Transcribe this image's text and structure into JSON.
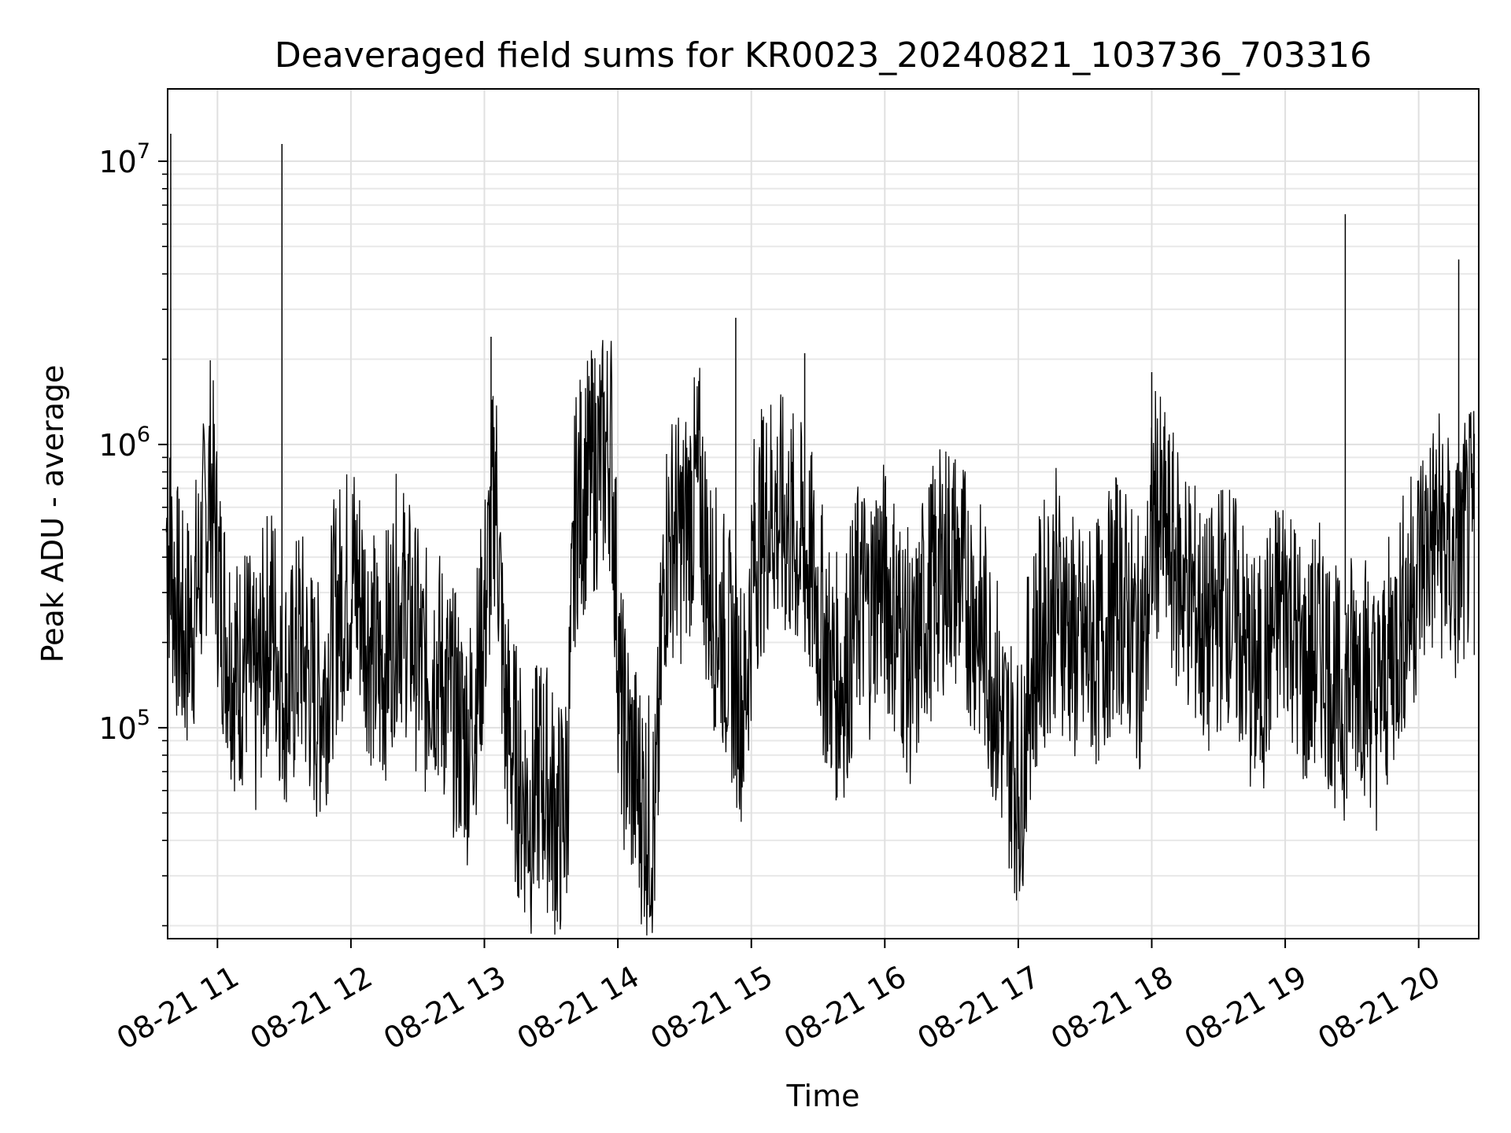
{
  "chart_data": {
    "type": "line",
    "title": "Deaveraged field sums for KR0023_20240821_103736_703316",
    "xlabel": "Time",
    "ylabel": "Peak ADU - average",
    "yscale": "log",
    "ylim": [
      18000,
      18000000
    ],
    "xlim": [
      "2024-08-21 10:37:36",
      "2024-08-21 20:27:00"
    ],
    "grid": true,
    "x_ticks": [
      {
        "t": "2024-08-21 11:00",
        "label": "08-21 11"
      },
      {
        "t": "2024-08-21 12:00",
        "label": "08-21 12"
      },
      {
        "t": "2024-08-21 13:00",
        "label": "08-21 13"
      },
      {
        "t": "2024-08-21 14:00",
        "label": "08-21 14"
      },
      {
        "t": "2024-08-21 15:00",
        "label": "08-21 15"
      },
      {
        "t": "2024-08-21 16:00",
        "label": "08-21 16"
      },
      {
        "t": "2024-08-21 17:00",
        "label": "08-21 17"
      },
      {
        "t": "2024-08-21 18:00",
        "label": "08-21 18"
      },
      {
        "t": "2024-08-21 19:00",
        "label": "08-21 19"
      },
      {
        "t": "2024-08-21 20:00",
        "label": "08-21 20"
      }
    ],
    "y_ticks": [
      {
        "value": 100000,
        "base": "10",
        "exp": "5"
      },
      {
        "value": 1000000,
        "base": "10",
        "exp": "6"
      },
      {
        "value": 10000000,
        "base": "10",
        "exp": "7"
      }
    ],
    "series": [
      {
        "color": "#000000",
        "x": [
          "2024-08-21 10:37",
          "2024-08-21 10:41",
          "2024-08-21 10:45",
          "2024-08-21 10:49",
          "2024-08-21 10:53",
          "2024-08-21 10:57",
          "2024-08-21 11:01",
          "2024-08-21 11:05",
          "2024-08-21 11:09",
          "2024-08-21 11:13",
          "2024-08-21 11:17",
          "2024-08-21 11:21",
          "2024-08-21 11:25",
          "2024-08-21 11:29",
          "2024-08-21 11:33",
          "2024-08-21 11:37",
          "2024-08-21 11:41",
          "2024-08-21 11:45",
          "2024-08-21 11:49",
          "2024-08-21 11:53",
          "2024-08-21 11:57",
          "2024-08-21 12:01",
          "2024-08-21 12:05",
          "2024-08-21 12:09",
          "2024-08-21 12:13",
          "2024-08-21 12:17",
          "2024-08-21 12:21",
          "2024-08-21 12:25",
          "2024-08-21 12:29",
          "2024-08-21 12:33",
          "2024-08-21 12:37",
          "2024-08-21 12:41",
          "2024-08-21 12:45",
          "2024-08-21 12:49",
          "2024-08-21 12:53",
          "2024-08-21 12:57",
          "2024-08-21 13:01",
          "2024-08-21 13:05",
          "2024-08-21 13:09",
          "2024-08-21 13:13",
          "2024-08-21 13:17",
          "2024-08-21 13:21",
          "2024-08-21 13:25",
          "2024-08-21 13:29",
          "2024-08-21 13:33",
          "2024-08-21 13:37",
          "2024-08-21 13:41",
          "2024-08-21 13:45",
          "2024-08-21 13:49",
          "2024-08-21 13:53",
          "2024-08-21 13:57",
          "2024-08-21 14:01",
          "2024-08-21 14:05",
          "2024-08-21 14:09",
          "2024-08-21 14:13",
          "2024-08-21 14:17",
          "2024-08-21 14:21",
          "2024-08-21 14:25",
          "2024-08-21 14:29",
          "2024-08-21 14:33",
          "2024-08-21 14:37",
          "2024-08-21 14:41",
          "2024-08-21 14:45",
          "2024-08-21 14:49",
          "2024-08-21 14:53",
          "2024-08-21 14:57",
          "2024-08-21 15:01",
          "2024-08-21 15:05",
          "2024-08-21 15:09",
          "2024-08-21 15:13",
          "2024-08-21 15:17",
          "2024-08-21 15:21",
          "2024-08-21 15:25",
          "2024-08-21 15:29",
          "2024-08-21 15:33",
          "2024-08-21 15:37",
          "2024-08-21 15:41",
          "2024-08-21 15:45",
          "2024-08-21 15:49",
          "2024-08-21 15:53",
          "2024-08-21 15:57",
          "2024-08-21 16:01",
          "2024-08-21 16:05",
          "2024-08-21 16:09",
          "2024-08-21 16:13",
          "2024-08-21 16:17",
          "2024-08-21 16:21",
          "2024-08-21 16:25",
          "2024-08-21 16:29",
          "2024-08-21 16:33",
          "2024-08-21 16:37",
          "2024-08-21 16:41",
          "2024-08-21 16:45",
          "2024-08-21 16:49",
          "2024-08-21 16:53",
          "2024-08-21 16:57",
          "2024-08-21 17:01",
          "2024-08-21 17:05",
          "2024-08-21 17:09",
          "2024-08-21 17:13",
          "2024-08-21 17:17",
          "2024-08-21 17:21",
          "2024-08-21 17:25",
          "2024-08-21 17:29",
          "2024-08-21 17:33",
          "2024-08-21 17:37",
          "2024-08-21 17:41",
          "2024-08-21 17:45",
          "2024-08-21 17:49",
          "2024-08-21 17:53",
          "2024-08-21 17:57",
          "2024-08-21 18:01",
          "2024-08-21 18:05",
          "2024-08-21 18:09",
          "2024-08-21 18:13",
          "2024-08-21 18:17",
          "2024-08-21 18:21",
          "2024-08-21 18:25",
          "2024-08-21 18:29",
          "2024-08-21 18:33",
          "2024-08-21 18:37",
          "2024-08-21 18:41",
          "2024-08-21 18:45",
          "2024-08-21 18:49",
          "2024-08-21 18:53",
          "2024-08-21 18:57",
          "2024-08-21 19:01",
          "2024-08-21 19:05",
          "2024-08-21 19:09",
          "2024-08-21 19:13",
          "2024-08-21 19:17",
          "2024-08-21 19:21",
          "2024-08-21 19:25",
          "2024-08-21 19:29",
          "2024-08-21 19:33",
          "2024-08-21 19:37",
          "2024-08-21 19:41",
          "2024-08-21 19:45",
          "2024-08-21 19:49",
          "2024-08-21 19:53",
          "2024-08-21 19:57",
          "2024-08-21 20:01",
          "2024-08-21 20:05",
          "2024-08-21 20:09",
          "2024-08-21 20:13",
          "2024-08-21 20:17",
          "2024-08-21 20:21",
          "2024-08-21 20:25"
        ],
        "y": [
          500000,
          300000,
          200000,
          250000,
          400000,
          800000,
          300000,
          200000,
          150000,
          180000,
          120000,
          200000,
          250000,
          150000,
          140000,
          200000,
          150000,
          120000,
          150000,
          250000,
          300000,
          350000,
          280000,
          200000,
          150000,
          200000,
          300000,
          250000,
          200000,
          150000,
          180000,
          150000,
          120000,
          100000,
          90000,
          150000,
          300000,
          800000,
          120000,
          80000,
          60000,
          50000,
          70000,
          60000,
          45000,
          55000,
          600000,
          700000,
          800000,
          900000,
          1000000,
          120000,
          80000,
          60000,
          50000,
          45000,
          400000,
          500000,
          450000,
          600000,
          700000,
          300000,
          250000,
          200000,
          150000,
          120000,
          400000,
          500000,
          600000,
          550000,
          500000,
          450000,
          400000,
          300000,
          200000,
          150000,
          150000,
          200000,
          300000,
          250000,
          350000,
          300000,
          250000,
          200000,
          150000,
          250000,
          300000,
          350000,
          400000,
          350000,
          300000,
          250000,
          200000,
          150000,
          100000,
          80000,
          60000,
          150000,
          200000,
          250000,
          300000,
          250000,
          200000,
          180000,
          200000,
          200000,
          250000,
          300000,
          250000,
          200000,
          200000,
          600000,
          500000,
          400000,
          350000,
          300000,
          250000,
          200000,
          250000,
          300000,
          250000,
          200000,
          150000,
          150000,
          200000,
          250000,
          300000,
          200000,
          150000,
          180000,
          200000,
          150000,
          120000,
          150000,
          180000,
          150000,
          120000,
          150000,
          200000,
          250000,
          300000,
          400000,
          450000,
          500000,
          400000,
          350000,
          450000,
          500000
        ]
      }
    ],
    "peaks": [
      {
        "t": "2024-08-21 10:39",
        "value": 12500000
      },
      {
        "t": "2024-08-21 11:29",
        "value": 11500000
      },
      {
        "t": "2024-08-21 13:03",
        "value": 2400000
      },
      {
        "t": "2024-08-21 14:53",
        "value": 2800000
      },
      {
        "t": "2024-08-21 15:24",
        "value": 2100000
      },
      {
        "t": "2024-08-21 18:00",
        "value": 1800000
      },
      {
        "t": "2024-08-21 19:27",
        "value": 6500000
      },
      {
        "t": "2024-08-21 20:18",
        "value": 4500000
      }
    ]
  }
}
